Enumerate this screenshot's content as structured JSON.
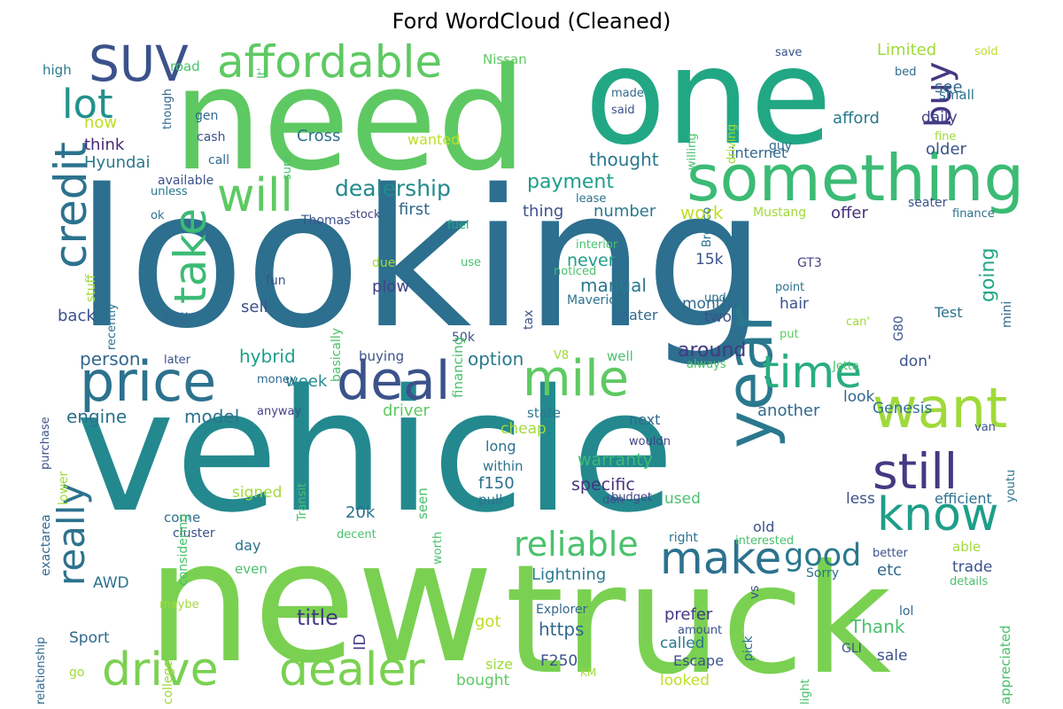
{
  "title": "Ford WordCloud (Cleaned)",
  "colors": {
    "background": "#ffffff",
    "title": "#000000"
  },
  "words": [
    {
      "text": "looking",
      "color": "#2c6f8e"
    },
    {
      "text": "vehicle",
      "color": "#23898e"
    },
    {
      "text": "new",
      "color": "#7ad151"
    },
    {
      "text": "need",
      "color": "#5ec962"
    },
    {
      "text": "one",
      "color": "#22a785"
    },
    {
      "text": "truck",
      "color": "#7ad151"
    },
    {
      "text": "something",
      "color": "#3bbb75"
    },
    {
      "text": "deal",
      "color": "#3b528b"
    },
    {
      "text": "price",
      "color": "#2c728e"
    },
    {
      "text": "mile",
      "color": "#5ec962"
    },
    {
      "text": "want",
      "color": "#a0da39"
    },
    {
      "text": "know",
      "color": "#1f9e89"
    },
    {
      "text": "still",
      "color": "#443983"
    },
    {
      "text": "year",
      "color": "#2a788e"
    },
    {
      "text": "time",
      "color": "#27ad81"
    },
    {
      "text": "make",
      "color": "#2c728e"
    },
    {
      "text": "drive",
      "color": "#7ad151"
    },
    {
      "text": "dealer",
      "color": "#7ad151"
    },
    {
      "text": "SUV",
      "color": "#3b528b"
    },
    {
      "text": "affordable",
      "color": "#5ec962"
    },
    {
      "text": "lot",
      "color": "#21918c"
    },
    {
      "text": "credit",
      "color": "#2c728e"
    },
    {
      "text": "take",
      "color": "#3bbb75"
    },
    {
      "text": "will",
      "color": "#5ec962"
    },
    {
      "text": "buy",
      "color": "#443983"
    },
    {
      "text": "really",
      "color": "#2c728e"
    },
    {
      "text": "reliable",
      "color": "#4ac16d"
    },
    {
      "text": "good",
      "color": "#2a788e"
    },
    {
      "text": "dealership",
      "color": "#23898e"
    },
    {
      "text": "payment",
      "color": "#1f9e89"
    },
    {
      "text": "work",
      "color": "#bddf26"
    },
    {
      "text": "thought",
      "color": "#2a788e"
    },
    {
      "text": "Hyundai",
      "color": "#2a788e"
    },
    {
      "text": "think",
      "color": "#482878"
    },
    {
      "text": "now",
      "color": "#bddf26"
    },
    {
      "text": "Cross",
      "color": "#2c728e"
    },
    {
      "text": "wanted",
      "color": "#bddf26"
    },
    {
      "text": "internet",
      "color": "#31688e"
    },
    {
      "text": "older",
      "color": "#3b528b"
    },
    {
      "text": "daily",
      "color": "#414487"
    },
    {
      "text": "afford",
      "color": "#2a788e"
    },
    {
      "text": "see",
      "color": "#31688e"
    },
    {
      "text": "Limited",
      "color": "#a0da39"
    },
    {
      "text": "small",
      "color": "#2c728e"
    },
    {
      "text": "number",
      "color": "#2a788e"
    },
    {
      "text": "offer",
      "color": "#46327e"
    },
    {
      "text": "first",
      "color": "#31688e"
    },
    {
      "text": "thing",
      "color": "#3b528b"
    },
    {
      "text": "never",
      "color": "#1f9e89"
    },
    {
      "text": "manual",
      "color": "#2a788e"
    },
    {
      "text": "month",
      "color": "#31688e"
    },
    {
      "text": "15k",
      "color": "#3b528b"
    },
    {
      "text": "going",
      "color": "#22a785"
    },
    {
      "text": "hair",
      "color": "#3b528b"
    },
    {
      "text": "option",
      "color": "#2a788e"
    },
    {
      "text": "around",
      "color": "#443983"
    },
    {
      "text": "hybrid",
      "color": "#1f9e89"
    },
    {
      "text": "person",
      "color": "#31688e"
    },
    {
      "text": "engine",
      "color": "#2c728e"
    },
    {
      "text": "model",
      "color": "#2c728e"
    },
    {
      "text": "week",
      "color": "#23898e"
    },
    {
      "text": "driver",
      "color": "#5ec962"
    },
    {
      "text": "another",
      "color": "#31688e"
    },
    {
      "text": "look",
      "color": "#31688e"
    },
    {
      "text": "Genesis",
      "color": "#2c728e"
    },
    {
      "text": "warranty",
      "color": "#3bbb75"
    },
    {
      "text": "specific",
      "color": "#46327e"
    },
    {
      "text": "used",
      "color": "#4ac16d"
    },
    {
      "text": "signed",
      "color": "#a0da39"
    },
    {
      "text": "20k",
      "color": "#2c728e"
    },
    {
      "text": "efficient",
      "color": "#2c728e"
    },
    {
      "text": "less",
      "color": "#3b528b"
    },
    {
      "text": "Lightning",
      "color": "#2a788e"
    },
    {
      "text": "title",
      "color": "#443983"
    },
    {
      "text": "trade",
      "color": "#3b528b"
    },
    {
      "text": "etc",
      "color": "#31688e"
    },
    {
      "text": "AWD",
      "color": "#2c728e"
    },
    {
      "text": "https",
      "color": "#31688e"
    },
    {
      "text": "got",
      "color": "#bddf26"
    },
    {
      "text": "Thank",
      "color": "#4ac16d"
    },
    {
      "text": "sale",
      "color": "#3b528b"
    },
    {
      "text": "Sport",
      "color": "#31688e"
    },
    {
      "text": "called",
      "color": "#2a788e"
    },
    {
      "text": "Escape",
      "color": "#3b528b"
    },
    {
      "text": "F250",
      "color": "#3b528b"
    },
    {
      "text": "bought",
      "color": "#5ec962"
    },
    {
      "text": "looked",
      "color": "#bddf26"
    },
    {
      "text": "size",
      "color": "#a0da39"
    },
    {
      "text": "prefer",
      "color": "#443983"
    },
    {
      "text": "ID",
      "color": "#414487"
    },
    {
      "text": "back",
      "color": "#3b528b"
    },
    {
      "text": "tell",
      "color": "#31688e"
    },
    {
      "text": "sell",
      "color": "#3b528b"
    },
    {
      "text": "plow",
      "color": "#414487"
    },
    {
      "text": "two",
      "color": "#3b528b"
    },
    {
      "text": "beater",
      "color": "#31688e"
    },
    {
      "text": "Test",
      "color": "#2c728e"
    },
    {
      "text": "Mustang",
      "color": "#a0da39"
    },
    {
      "text": "Thomas",
      "color": "#3b528b"
    },
    {
      "text": "stock",
      "color": "#414487"
    },
    {
      "text": "available",
      "color": "#3b528b"
    },
    {
      "text": "seater",
      "color": "#3b528b"
    },
    {
      "text": "finance",
      "color": "#2c728e"
    },
    {
      "text": "Nissan",
      "color": "#5ec962"
    },
    {
      "text": "road",
      "color": "#4ac16d"
    },
    {
      "text": "high",
      "color": "#2a788e"
    },
    {
      "text": "save",
      "color": "#3b528b"
    },
    {
      "text": "sold",
      "color": "#bddf26"
    },
    {
      "text": "bed",
      "color": "#31688e"
    },
    {
      "text": "made",
      "color": "#31688e"
    },
    {
      "text": "said",
      "color": "#3b528b"
    },
    {
      "text": "gen",
      "color": "#31688e"
    },
    {
      "text": "cash",
      "color": "#3b528b"
    },
    {
      "text": "call",
      "color": "#31688e"
    },
    {
      "text": "unless",
      "color": "#2a788e"
    },
    {
      "text": "ok",
      "color": "#2c728e"
    },
    {
      "text": "fuel",
      "color": "#22a785"
    },
    {
      "text": "use",
      "color": "#4ac16d"
    },
    {
      "text": "due",
      "color": "#a0da39"
    },
    {
      "text": "fun",
      "color": "#3b528b"
    },
    {
      "text": "interior",
      "color": "#4ac16d"
    },
    {
      "text": "noticed",
      "color": "#4ac16d"
    },
    {
      "text": "Maverick",
      "color": "#2c728e"
    },
    {
      "text": "update",
      "color": "#2c728e"
    },
    {
      "text": "point",
      "color": "#2c728e"
    },
    {
      "text": "GT3",
      "color": "#414487"
    },
    {
      "text": "put",
      "color": "#5ec962"
    },
    {
      "text": "can'",
      "color": "#a0da39"
    },
    {
      "text": "mini",
      "color": "#31688e"
    },
    {
      "text": "tax",
      "color": "#3b528b"
    },
    {
      "text": "50k",
      "color": "#3b528b"
    },
    {
      "text": "V8",
      "color": "#a0da39"
    },
    {
      "text": "buying",
      "color": "#3b528b"
    },
    {
      "text": "later",
      "color": "#3b528b"
    },
    {
      "text": "well",
      "color": "#4ac16d"
    },
    {
      "text": "always",
      "color": "#4ac16d"
    },
    {
      "text": "don'",
      "color": "#3b528b"
    },
    {
      "text": "Jetta",
      "color": "#4ac16d"
    },
    {
      "text": "money",
      "color": "#31688e"
    },
    {
      "text": "anyway",
      "color": "#414487"
    },
    {
      "text": "state",
      "color": "#2a788e"
    },
    {
      "text": "next",
      "color": "#31688e"
    },
    {
      "text": "cheap",
      "color": "#a0da39"
    },
    {
      "text": "van",
      "color": "#3b528b"
    },
    {
      "text": "long",
      "color": "#2c728e"
    },
    {
      "text": "wouldn",
      "color": "#414487"
    },
    {
      "text": "within",
      "color": "#2c728e"
    },
    {
      "text": "f150",
      "color": "#2c728e"
    },
    {
      "text": "pull",
      "color": "#2c728e"
    },
    {
      "text": "don",
      "color": "#3b528b"
    },
    {
      "text": "budget",
      "color": "#414487"
    },
    {
      "text": "seen",
      "color": "#4ac16d"
    },
    {
      "text": "come",
      "color": "#2c728e"
    },
    {
      "text": "cluster",
      "color": "#3b528b"
    },
    {
      "text": "decent",
      "color": "#4ac16d"
    },
    {
      "text": "day",
      "color": "#2c728e"
    },
    {
      "text": "right",
      "color": "#2c728e"
    },
    {
      "text": "old",
      "color": "#3b528b"
    },
    {
      "text": "interested",
      "color": "#4ac16d"
    },
    {
      "text": "able",
      "color": "#a0da39"
    },
    {
      "text": "better",
      "color": "#3b528b"
    },
    {
      "text": "Sorry",
      "color": "#2c728e"
    },
    {
      "text": "details",
      "color": "#4ac16d"
    },
    {
      "text": "vs",
      "color": "#3b528b"
    },
    {
      "text": "lol",
      "color": "#31688e"
    },
    {
      "text": "maybe",
      "color": "#a0da39"
    },
    {
      "text": "even",
      "color": "#4ac16d"
    },
    {
      "text": "Explorer",
      "color": "#31688e"
    },
    {
      "text": "amount",
      "color": "#3b528b"
    },
    {
      "text": "GLI",
      "color": "#3b528b"
    },
    {
      "text": "go",
      "color": "#a0da39"
    },
    {
      "text": "KM",
      "color": "#a0da39"
    },
    {
      "text": "exactarea",
      "color": "#31688e"
    },
    {
      "text": "It'",
      "color": "#4ac16d"
    },
    {
      "text": "though",
      "color": "#31688e"
    },
    {
      "text": "willing",
      "color": "#4ac16d"
    },
    {
      "text": "fine",
      "color": "#a0da39"
    },
    {
      "text": "driving",
      "color": "#a0da39"
    },
    {
      "text": "guy",
      "color": "#31688e"
    },
    {
      "text": "sure",
      "color": "#4ac16d"
    },
    {
      "text": "lease",
      "color": "#2c728e"
    },
    {
      "text": "stuff",
      "color": "#a0da39"
    },
    {
      "text": "recently",
      "color": "#2c728e"
    },
    {
      "text": "basically",
      "color": "#4ac16d"
    },
    {
      "text": "financing",
      "color": "#4ac16d"
    },
    {
      "text": "Bronco",
      "color": "#2c728e"
    },
    {
      "text": "G80",
      "color": "#3b528b"
    },
    {
      "text": "purchase",
      "color": "#3b528b"
    },
    {
      "text": "lower",
      "color": "#a0da39"
    },
    {
      "text": "considering",
      "color": "#4ac16d"
    },
    {
      "text": "Transit",
      "color": "#4ac16d"
    },
    {
      "text": "worth",
      "color": "#4ac16d"
    },
    {
      "text": "youtu",
      "color": "#2c728e"
    },
    {
      "text": "relationship",
      "color": "#31688e"
    },
    {
      "text": "college",
      "color": "#a0da39"
    },
    {
      "text": "pick",
      "color": "#2c728e"
    },
    {
      "text": "light",
      "color": "#4ac16d"
    },
    {
      "text": "appreciated",
      "color": "#4ac16d"
    },
    {
      "text": "best",
      "color": "#3b528b"
    }
  ]
}
